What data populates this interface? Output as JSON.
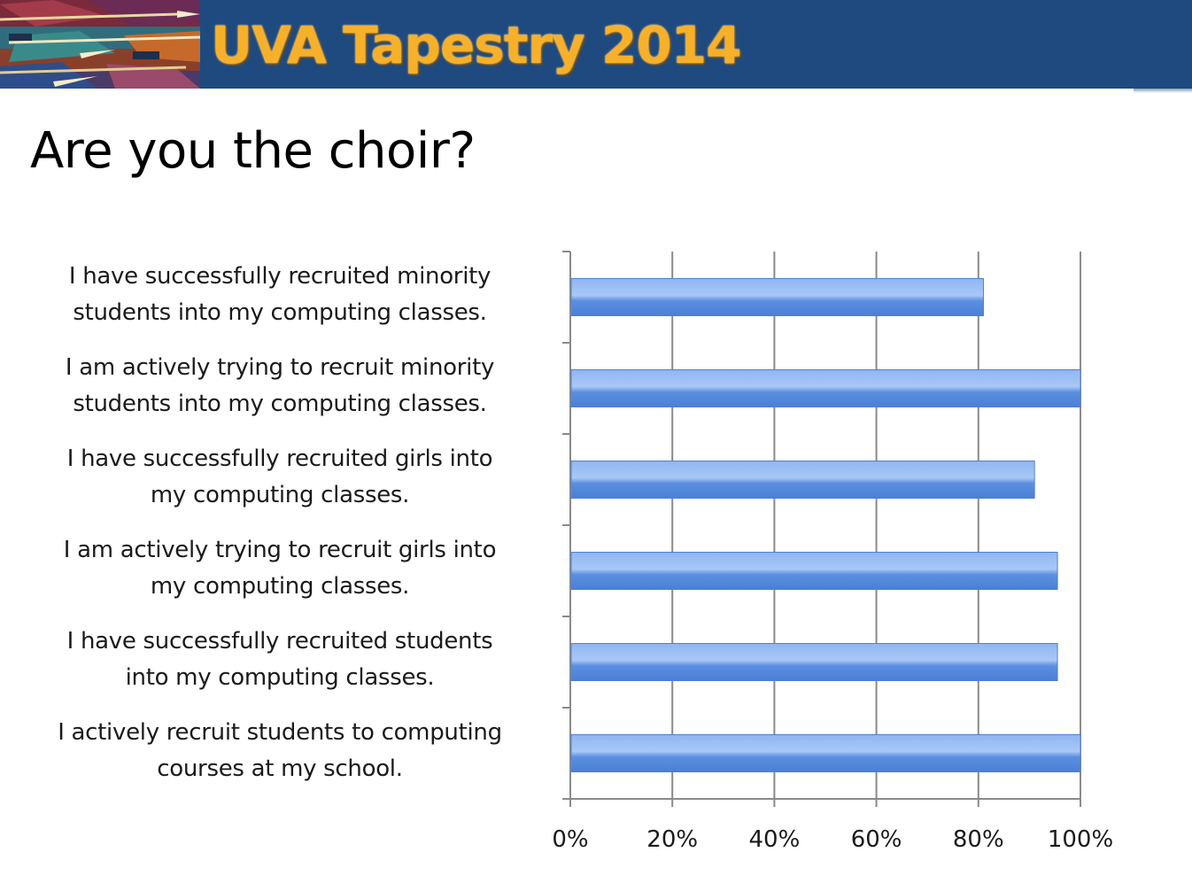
{
  "header": {
    "banner_title": "UVA Tapestry 2014",
    "slide_title": "Are you the choir?",
    "banner_color": "#1f4a80",
    "title_color": "#f7b02a"
  },
  "chart_data": {
    "type": "bar",
    "orientation": "horizontal",
    "title": "",
    "xlabel": "",
    "ylabel": "",
    "xlim": [
      0,
      100
    ],
    "x_ticks": [
      "0%",
      "20%",
      "40%",
      "60%",
      "80%",
      "100%"
    ],
    "grid": true,
    "bar_color": "#5b8fe0",
    "categories": [
      [
        "I have successfully recruited minority",
        "students into my computing classes."
      ],
      [
        "I am actively trying to recruit minority",
        "students into my computing classes."
      ],
      [
        "I have successfully recruited girls into",
        "my computing classes."
      ],
      [
        "I am actively trying to recruit girls into",
        "my computing classes."
      ],
      [
        "I have successfully recruited students",
        "into my computing classes."
      ],
      [
        "I actively recruit students to computing",
        "courses at my school."
      ]
    ],
    "values": [
      81,
      100,
      91,
      95.5,
      95.5,
      100
    ]
  }
}
